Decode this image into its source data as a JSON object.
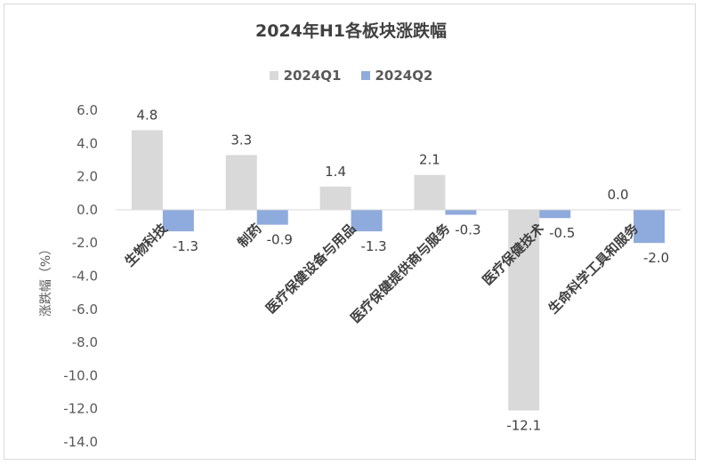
{
  "chart_data": {
    "type": "bar",
    "title": "2024年H1各板块涨跌幅",
    "ylabel": "涨跌幅（%）",
    "categories": [
      "生物科技",
      "制药",
      "医疗保健设备与用品",
      "医疗保健提供商与服务",
      "医疗保健技术",
      "生命科学工具和服务"
    ],
    "series": [
      {
        "name": "2024Q1",
        "color": "#d9d9d9",
        "values": [
          4.8,
          3.3,
          1.4,
          2.1,
          -12.1,
          0.0
        ]
      },
      {
        "name": "2024Q2",
        "color": "#8faadc",
        "values": [
          -1.3,
          -0.9,
          -1.3,
          -0.3,
          -0.5,
          -2.0
        ]
      }
    ],
    "ylim": [
      -14.0,
      6.0
    ],
    "yticks": [
      "6.0",
      "4.0",
      "2.0",
      "0.0",
      "-2.0",
      "-4.0",
      "-6.0",
      "-8.0",
      "-10.0",
      "-12.0",
      "-14.0"
    ],
    "ytick_values": [
      6,
      4,
      2,
      0,
      -2,
      -4,
      -6,
      -8,
      -10,
      -12,
      -14
    ],
    "data_labels": [
      [
        "4.8",
        "3.3",
        "1.4",
        "2.1",
        "-12.1",
        "0.0"
      ],
      [
        "-1.3",
        "-0.9",
        "-1.3",
        "-0.3",
        "-0.5",
        "-2.0"
      ]
    ],
    "legend": "top",
    "grid": false
  }
}
